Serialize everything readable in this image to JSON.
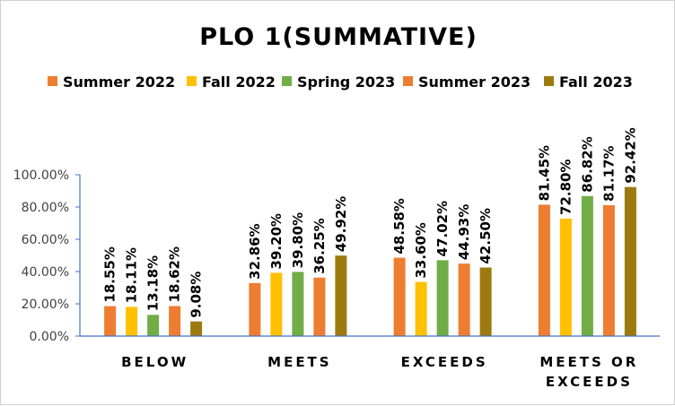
{
  "chart_data": {
    "type": "bar",
    "title": "PLO 1(SUMMATIVE)",
    "xlabel": "",
    "ylabel": "",
    "categories": [
      "BELOW",
      "MEETS",
      "EXCEEDS",
      "MEETS OR EXCEEDS"
    ],
    "category_lines": [
      [
        "BELOW"
      ],
      [
        "MEETS"
      ],
      [
        "EXCEEDS"
      ],
      [
        "MEETS OR",
        "EXCEEDS"
      ]
    ],
    "series": [
      {
        "name": "Summer 2022",
        "color": "#ED7D31",
        "values": [
          18.55,
          32.86,
          48.58,
          81.45
        ],
        "labels": [
          "18.55%",
          "32.86%",
          "48.58%",
          "81.45%"
        ]
      },
      {
        "name": "Fall 2022",
        "color": "#FFC000",
        "values": [
          18.11,
          39.2,
          33.6,
          72.8
        ],
        "labels": [
          "18.11%",
          "39.20%",
          "33.60%",
          "72.80%"
        ]
      },
      {
        "name": "Spring 2023",
        "color": "#70AD47",
        "values": [
          13.18,
          39.8,
          47.02,
          86.82
        ],
        "labels": [
          "13.18%",
          "39.80%",
          "47.02%",
          "86.82%"
        ]
      },
      {
        "name": "Summer 2023",
        "color": "#ED7D31",
        "values": [
          18.62,
          36.25,
          44.93,
          81.17
        ],
        "labels": [
          "18.62%",
          "36.25%",
          "44.93%",
          "81.17%"
        ]
      },
      {
        "name": "Fall 2023",
        "color": "#9C7A10",
        "values": [
          9.08,
          49.92,
          42.5,
          92.42
        ],
        "labels": [
          "9.08%",
          "49.92%",
          "42.50%",
          "92.42%"
        ]
      }
    ],
    "ylim": [
      0,
      100
    ],
    "yticks": [
      "0.00%",
      "20.00%",
      "40.00%",
      "60.00%",
      "80.00%",
      "100.00%"
    ],
    "grid": false,
    "legend_position": "top"
  }
}
